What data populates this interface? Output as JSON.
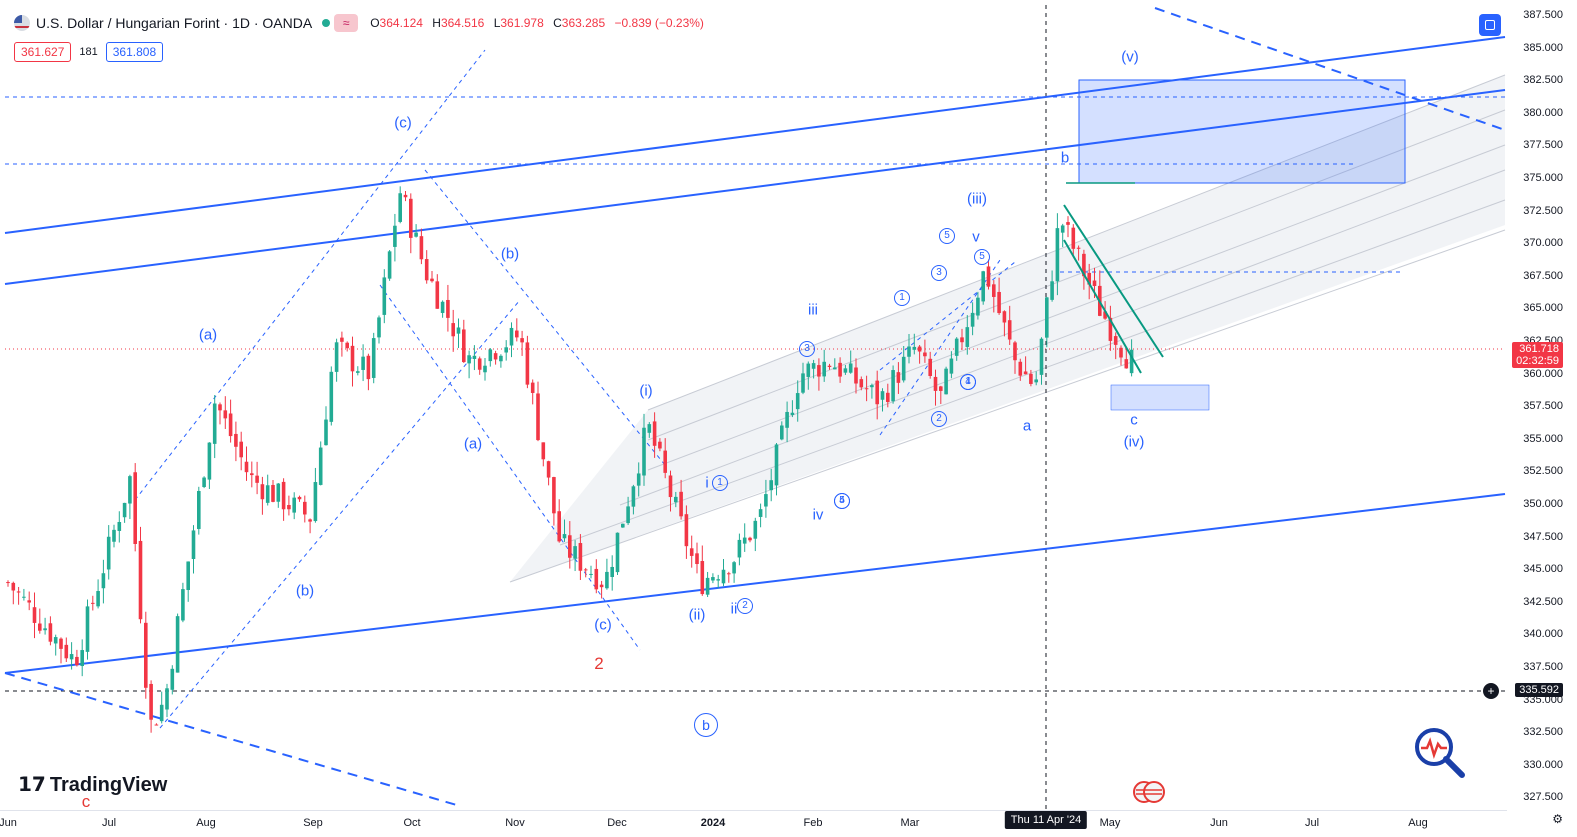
{
  "header": {
    "symbol_title": "U.S. Dollar / Hungarian Forint · 1D · OANDA",
    "indicator_glyph": "≈",
    "open_label": "O",
    "open": "364.124",
    "high_label": "H",
    "high": "364.516",
    "low_label": "L",
    "low": "361.978",
    "close_label": "C",
    "close": "363.285",
    "change": "−0.839 (−0.23%)"
  },
  "quote": {
    "sell": "361.627",
    "spread": "181",
    "buy": "361.808"
  },
  "price_axis": {
    "ticks": [
      "387.500",
      "385.000",
      "382.500",
      "380.000",
      "377.500",
      "375.000",
      "372.500",
      "370.000",
      "367.500",
      "365.000",
      "362.500",
      "360.000",
      "357.500",
      "355.000",
      "352.500",
      "350.000",
      "347.500",
      "345.000",
      "342.500",
      "340.000",
      "337.500",
      "335.000",
      "332.500",
      "330.000",
      "327.500"
    ],
    "current_price": "361.718",
    "countdown": "02:32:59",
    "crosshair_price": "335.592"
  },
  "time_axis": {
    "ticks": [
      "Jun",
      "Jul",
      "Aug",
      "Sep",
      "Oct",
      "Nov",
      "Dec",
      "2024",
      "Feb",
      "Mar",
      "May",
      "Jun",
      "Jul",
      "Aug"
    ],
    "crosshair_date": "Thu 11 Apr '24"
  },
  "wave_labels": [
    "(a)",
    "(b)",
    "(c)",
    "(b)",
    "(a)",
    "(c)",
    "(i)",
    "(ii)",
    "i",
    "ii",
    "iii",
    "iv",
    "v",
    "(iii)",
    "a",
    "b",
    "c",
    "(iv)",
    "(v)"
  ],
  "circled_labels": [
    "1",
    "2",
    "1",
    "3",
    "4",
    "5",
    "1",
    "2",
    "3",
    "4",
    "5",
    "5"
  ],
  "big_circled_label": "b",
  "red_labels": [
    "2",
    "c"
  ],
  "branding": {
    "logo_text": "TradingView"
  },
  "colors": {
    "up": "#22ab94",
    "down": "#f23645",
    "wave": "#2962ff",
    "accent": "#2962ff"
  }
}
